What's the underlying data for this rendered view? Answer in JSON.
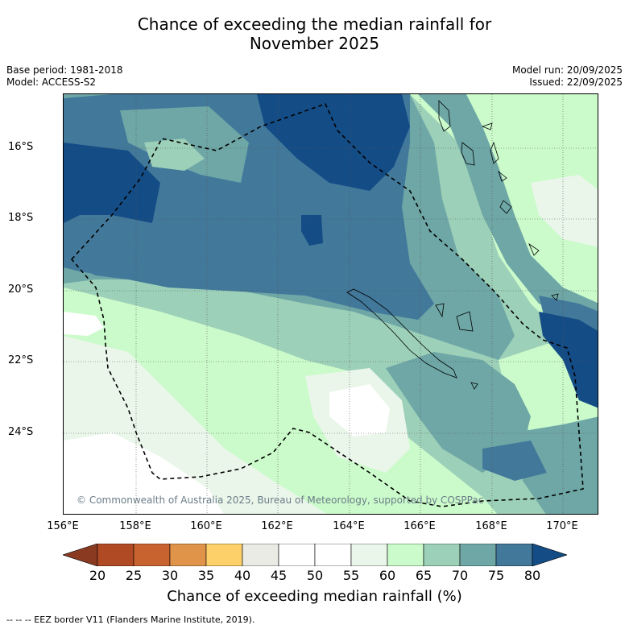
{
  "title_line1": "Chance of exceeding the median rainfall for",
  "title_line2": "November 2025",
  "base_period": "Base period: 1981-2018",
  "model": "Model: ACCESS-S2",
  "model_run": "Model run: 20/09/2025",
  "issued": "Issued: 22/09/2025",
  "lat_labels": [
    "16°S",
    "18°S",
    "20°S",
    "22°S",
    "24°S"
  ],
  "lon_labels": [
    "156°E",
    "158°E",
    "160°E",
    "162°E",
    "164°E",
    "166°E",
    "168°E",
    "170°E"
  ],
  "copyright": "© Commonwealth of Australia 2025, Bureau of Meteorology, supported by COSPPac",
  "colorbar": {
    "ticks": [
      "20",
      "25",
      "30",
      "35",
      "40",
      "45",
      "50",
      "55",
      "60",
      "65",
      "70",
      "75",
      "80"
    ],
    "label": "Chance of exceeding median rainfall (%)",
    "colors": [
      "#8b3a22",
      "#b04a25",
      "#c8622e",
      "#e0944a",
      "#fed06a",
      "#ebebe6",
      "#ffffff",
      "#ffffff",
      "#eaf6ea",
      "#cbfbcb",
      "#9dd0b8",
      "#6ea7a6",
      "#42789a",
      "#144c86"
    ]
  },
  "eez_note": "--  --  -- EEZ border V11 (Flanders Marine Institute, 2019)."
}
